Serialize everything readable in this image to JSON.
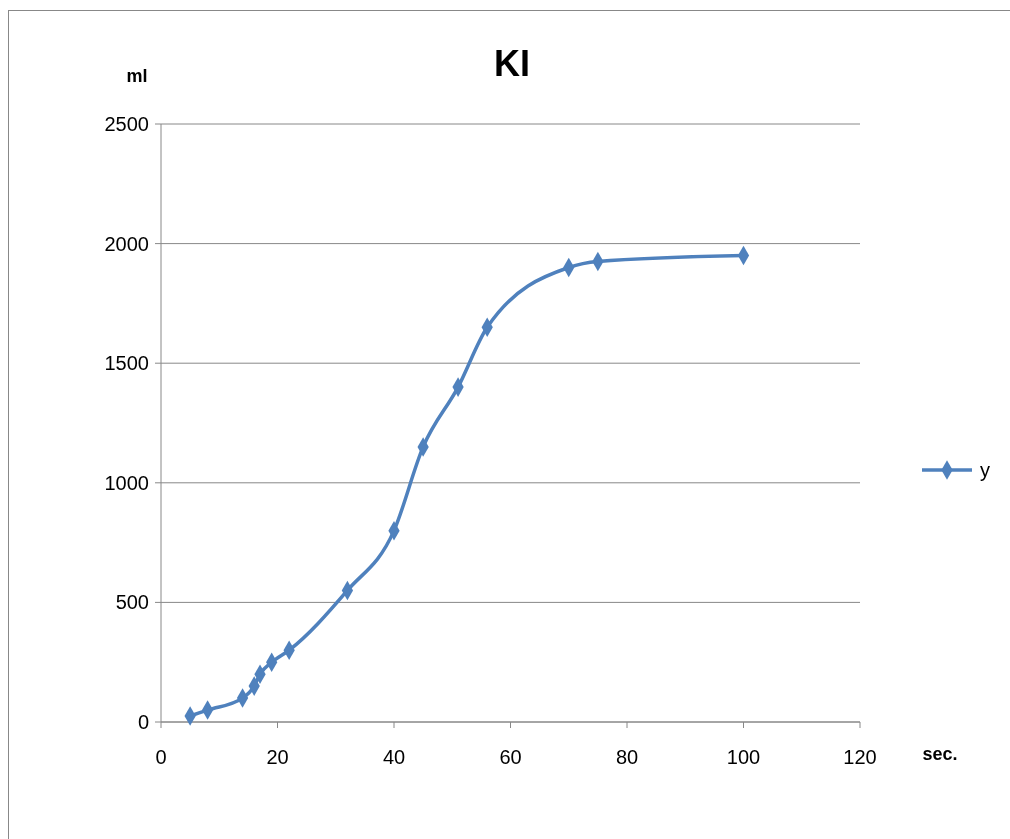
{
  "chart_data": {
    "type": "line",
    "title": "KI",
    "xlabel": "sec.",
    "ylabel": "ml",
    "x": [
      5,
      8,
      14,
      16,
      17,
      19,
      22,
      32,
      40,
      45,
      51,
      56,
      70,
      75,
      100
    ],
    "series": [
      {
        "name": "y",
        "color": "#4f81bd",
        "values": [
          25,
          50,
          100,
          150,
          200,
          250,
          300,
          550,
          800,
          1150,
          1400,
          1650,
          1900,
          1925,
          1950
        ]
      }
    ],
    "xlim": [
      0,
      120
    ],
    "xticks": [
      0,
      20,
      40,
      60,
      80,
      100,
      120
    ],
    "ylim": [
      0,
      2500
    ],
    "yticks": [
      0,
      500,
      1000,
      1500,
      2000,
      2500
    ],
    "grid": "y",
    "legend": "right",
    "marker": "diamond",
    "line_style": "solid"
  }
}
